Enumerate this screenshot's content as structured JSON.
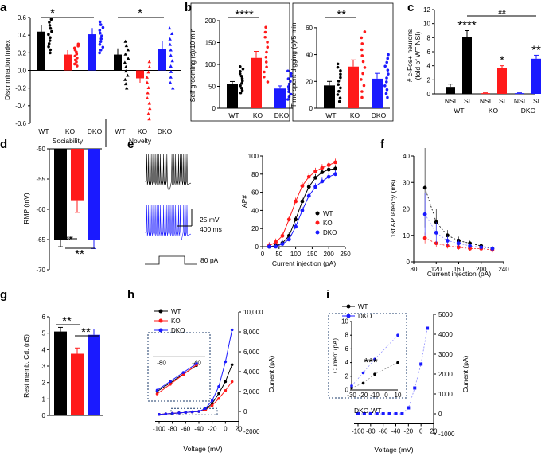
{
  "colors": {
    "wt": "#000000",
    "ko": "#ff1a1a",
    "dko": "#1a1aff",
    "dko_light": "#8c8cff"
  },
  "panels": {
    "a": {
      "label": "a",
      "ylabel": "Discrimination index",
      "yticks": [
        "0.6",
        "0.4",
        "0.2",
        "0.0",
        "-0.2",
        "-0.4",
        "-0.6"
      ],
      "groups": [
        "WT",
        "KO",
        "DKO",
        "WT",
        "KO",
        "DKO"
      ],
      "sections": [
        "Sociability",
        "Novelty"
      ],
      "sig": [
        "*",
        "*"
      ],
      "chart_data": {
        "type": "bar",
        "categories": [
          "Sociability WT",
          "Sociability KO",
          "Sociability DKO",
          "Novelty WT",
          "Novelty KO",
          "Novelty DKO"
        ],
        "values": [
          0.44,
          0.18,
          0.41,
          0.18,
          -0.09,
          0.24
        ],
        "errors": [
          0.07,
          0.05,
          0.07,
          0.07,
          0.05,
          0.09
        ],
        "ylim": [
          -0.6,
          0.6
        ],
        "scatter_range": [
          [
            0.2,
            0.58
          ],
          [
            0.05,
            0.3
          ],
          [
            0.2,
            0.55
          ],
          [
            -0.2,
            0.33
          ],
          [
            -0.55,
            0.1
          ],
          [
            -0.2,
            0.48
          ]
        ]
      }
    },
    "b1": {
      "label": "b",
      "ylabel": "Self grooming (s)/10 min",
      "yticks": [
        "0",
        "50",
        "100",
        "150",
        "200"
      ],
      "groups": [
        "WT",
        "KO",
        "DKO"
      ],
      "sig": [
        "****"
      ],
      "chart_data": {
        "type": "bar",
        "categories": [
          "WT",
          "KO",
          "DKO"
        ],
        "values": [
          55,
          115,
          45
        ],
        "errors": [
          6,
          15,
          6
        ],
        "ylim": [
          0,
          200
        ],
        "scatter_range": [
          [
            35,
            95
          ],
          [
            60,
            185
          ],
          [
            20,
            85
          ]
        ]
      }
    },
    "b2": {
      "ylabel": "Time spent digging (s)/5 min",
      "yticks": [
        "0",
        "20",
        "40",
        "60"
      ],
      "groups": [
        "WT",
        "KO",
        "DKO"
      ],
      "sig": [
        "**"
      ],
      "chart_data": {
        "type": "bar",
        "categories": [
          "WT",
          "KO",
          "DKO"
        ],
        "values": [
          17,
          31,
          22
        ],
        "errors": [
          3,
          5,
          4
        ],
        "ylim": [
          0,
          70
        ],
        "scatter_range": [
          [
            5,
            33
          ],
          [
            8,
            57
          ],
          [
            8,
            40
          ]
        ]
      }
    },
    "c": {
      "label": "c",
      "ylabel": "# c-Fos+ neurons (fold of WT NSI)",
      "yticks": [
        "0",
        "2",
        "4",
        "6",
        "8",
        "10",
        "12"
      ],
      "groups": [
        "NSI",
        "SI",
        "NSI",
        "SI",
        "NSI",
        "SI"
      ],
      "genotypes": [
        "WT",
        "KO",
        "DKO"
      ],
      "sig": [
        "****",
        "*",
        "**",
        "##"
      ],
      "chart_data": {
        "type": "bar",
        "categories": [
          "WT NSI",
          "WT SI",
          "KO NSI",
          "KO SI",
          "DKO NSI",
          "DKO SI"
        ],
        "values": [
          1.0,
          8.1,
          0.1,
          3.7,
          0.1,
          5.0
        ],
        "errors": [
          0.4,
          0.9,
          0.05,
          0.3,
          0.05,
          0.5
        ],
        "ylim": [
          0,
          12
        ]
      }
    },
    "d": {
      "label": "d",
      "ylabel": "RMP (mV)",
      "yticks": [
        "-50",
        "-55",
        "-60",
        "-65",
        "-70"
      ],
      "sig": [
        "**",
        "**"
      ],
      "chart_data": {
        "type": "bar",
        "categories": [
          "WT",
          "KO",
          "DKO"
        ],
        "values": [
          -65,
          -58.5,
          -65
        ],
        "errors": [
          1.2,
          2.0,
          1.5
        ],
        "ylim": [
          -70,
          -50
        ]
      }
    },
    "e": {
      "label": "e",
      "scale_mv": "25 mV",
      "scale_ms": "400 ms",
      "step_label": "80 pA",
      "ylabel": "AP#",
      "xlabel": "Current injection (pA)",
      "xticks": [
        "0",
        "50",
        "100",
        "150",
        "200",
        "250"
      ],
      "yticks": [
        "0",
        "20",
        "40",
        "60",
        "80",
        "100"
      ],
      "legend": [
        "WT",
        "KO",
        "DKO"
      ],
      "chart_data": {
        "type": "line",
        "x": [
          20,
          40,
          60,
          80,
          100,
          120,
          140,
          160,
          180,
          200,
          220
        ],
        "xlim": [
          0,
          250
        ],
        "ylim": [
          0,
          100
        ],
        "series": [
          {
            "name": "WT",
            "values": [
              0,
              1,
              4,
              12,
              30,
              50,
              66,
              76,
              82,
              85,
              86
            ]
          },
          {
            "name": "KO",
            "values": [
              1,
              5,
              12,
              30,
              50,
              67,
              77,
              83,
              87,
              90,
              93
            ]
          },
          {
            "name": "DKO",
            "values": [
              0,
              0,
              3,
              8,
              22,
              40,
              56,
              66,
              72,
              77,
              80
            ]
          }
        ]
      }
    },
    "f": {
      "label": "f",
      "ylabel": "1st AP latency (ms)",
      "xlabel": "Current injection (pA)",
      "xticks": [
        "80",
        "120",
        "160",
        "200",
        "240"
      ],
      "yticks": [
        "0",
        "10",
        "20",
        "30",
        "40"
      ],
      "chart_data": {
        "type": "line",
        "x": [
          100,
          120,
          140,
          160,
          180,
          200,
          220
        ],
        "xlim": [
          80,
          240
        ],
        "ylim": [
          0,
          40
        ],
        "series": [
          {
            "name": "WT",
            "values": [
              28,
              15,
              10,
              8,
              7,
              6,
              5
            ]
          },
          {
            "name": "KO",
            "values": [
              9,
              7,
              6,
              5.5,
              5,
              5,
              4.5
            ]
          },
          {
            "name": "DKO",
            "values": [
              18,
              11,
              8,
              7,
              6,
              5.5,
              5
            ]
          }
        ]
      }
    },
    "g": {
      "label": "g",
      "ylabel": "Rest memb. Cd. (nS)",
      "yticks": [
        "0",
        "1",
        "2",
        "3",
        "4",
        "5",
        "6"
      ],
      "sig": [
        "**",
        "**"
      ],
      "chart_data": {
        "type": "bar",
        "categories": [
          "WT",
          "KO",
          "DKO"
        ],
        "values": [
          5.1,
          3.75,
          4.9
        ],
        "errors": [
          0.25,
          0.35,
          0.35
        ],
        "ylim": [
          0,
          6
        ]
      }
    },
    "h": {
      "label": "h",
      "ylabel": "Current (pA)",
      "xlabel": "Voltage (mV)",
      "xticks": [
        "-100",
        "-80",
        "-60",
        "-40",
        "-20",
        "0",
        "20"
      ],
      "yticks": [
        "10,000",
        "8,000",
        "6,000",
        "4,000",
        "2,000",
        "0",
        "-2000"
      ],
      "inset_xticks": [
        "-80",
        "-40"
      ],
      "legend": [
        "WT",
        "KO",
        "DKO"
      ],
      "chart_data": {
        "type": "line",
        "x": [
          -100,
          -90,
          -80,
          -70,
          -60,
          -50,
          -40,
          -30,
          -20,
          -10,
          0,
          10
        ],
        "xlim": [
          -100,
          20
        ],
        "ylim": [
          -2000,
          10000
        ],
        "series": [
          {
            "name": "WT",
            "values": [
              -300,
              -250,
              -200,
              -150,
              -100,
              -50,
              0,
              200,
              800,
              1800,
              3000,
              4700
            ]
          },
          {
            "name": "KO",
            "values": [
              -300,
              -250,
              -200,
              -150,
              -100,
              -50,
              0,
              150,
              600,
              1300,
              2100,
              3000
            ]
          },
          {
            "name": "DKO",
            "values": [
              -300,
              -250,
              -200,
              -150,
              -100,
              -50,
              0,
              300,
              1100,
              2500,
              5000,
              8200
            ]
          }
        ]
      }
    },
    "i": {
      "label": "i",
      "ylabel": "Current (pA)",
      "xlabel": "Voltage (mV)",
      "xticks": [
        "-100",
        "-80",
        "-60",
        "-40",
        "-20",
        "0",
        "20"
      ],
      "yticks": [
        "5000",
        "4000",
        "3000",
        "2000",
        "1000",
        "0",
        "-1000"
      ],
      "inset_ylabel": "Current (pA)",
      "inset_yticks": [
        "10",
        "8",
        "6",
        "4",
        "2",
        "0"
      ],
      "inset_xticks": [
        "-30",
        "-20",
        "-10",
        "0",
        "10"
      ],
      "inset_sig": "***",
      "diff_label": "DKO-WT",
      "legend": [
        "WT",
        "DKO"
      ],
      "chart_data": {
        "type": "scatter",
        "x": [
          -100,
          -90,
          -80,
          -70,
          -60,
          -50,
          -40,
          -30,
          -20,
          -10,
          0,
          10
        ],
        "xlim": [
          -100,
          20
        ],
        "ylim": [
          -1000,
          5000
        ],
        "series": [
          {
            "name": "DKO-WT",
            "values": [
              0,
              0,
              0,
              0,
              0,
              0,
              0,
              0,
              300,
              1300,
              2500,
              4300
            ]
          }
        ]
      }
    }
  }
}
